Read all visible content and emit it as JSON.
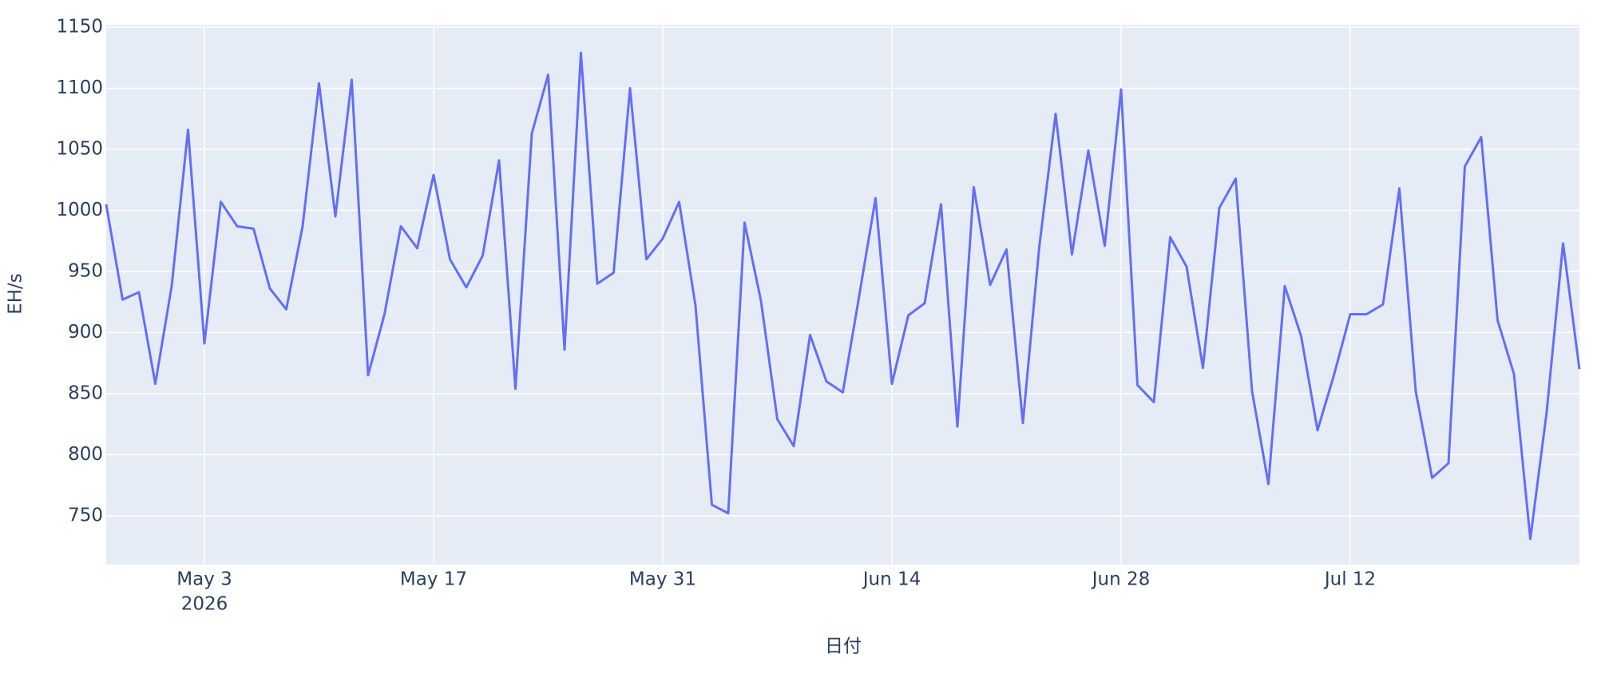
{
  "chart_data": {
    "type": "line",
    "x_label": "日付",
    "y_label": "EH/s",
    "x": [
      "2026-04-27",
      "2026-04-28",
      "2026-04-29",
      "2026-04-30",
      "2026-05-01",
      "2026-05-02",
      "2026-05-03",
      "2026-05-04",
      "2026-05-05",
      "2026-05-06",
      "2026-05-07",
      "2026-05-08",
      "2026-05-09",
      "2026-05-10",
      "2026-05-11",
      "2026-05-12",
      "2026-05-13",
      "2026-05-14",
      "2026-05-15",
      "2026-05-16",
      "2026-05-17",
      "2026-05-18",
      "2026-05-19",
      "2026-05-20",
      "2026-05-21",
      "2026-05-22",
      "2026-05-23",
      "2026-05-24",
      "2026-05-25",
      "2026-05-26",
      "2026-05-27",
      "2026-05-28",
      "2026-05-29",
      "2026-05-30",
      "2026-05-31",
      "2026-06-01",
      "2026-06-02",
      "2026-06-03",
      "2026-06-04",
      "2026-06-05",
      "2026-06-06",
      "2026-06-07",
      "2026-06-08",
      "2026-06-09",
      "2026-06-10",
      "2026-06-11",
      "2026-06-12",
      "2026-06-13",
      "2026-06-14",
      "2026-06-15",
      "2026-06-16",
      "2026-06-17",
      "2026-06-18",
      "2026-06-19",
      "2026-06-20",
      "2026-06-21",
      "2026-06-22",
      "2026-06-23",
      "2026-06-24",
      "2026-06-25",
      "2026-06-26",
      "2026-06-27",
      "2026-06-28",
      "2026-06-29",
      "2026-06-30",
      "2026-07-01",
      "2026-07-02",
      "2026-07-03",
      "2026-07-04",
      "2026-07-05",
      "2026-07-06",
      "2026-07-07",
      "2026-07-08",
      "2026-07-09",
      "2026-07-10",
      "2026-07-11",
      "2026-07-12",
      "2026-07-13",
      "2026-07-14",
      "2026-07-15",
      "2026-07-16",
      "2026-07-17",
      "2026-07-18",
      "2026-07-19",
      "2026-07-20",
      "2026-07-21",
      "2026-07-22",
      "2026-07-23",
      "2026-07-24",
      "2026-07-25",
      "2026-07-26"
    ],
    "series": [
      {
        "name": "EH/s",
        "color": "#636efa",
        "values": [
          1005,
          927,
          933,
          858,
          938,
          1066,
          891,
          1007,
          987,
          985,
          936,
          919,
          987,
          1104,
          995,
          1107,
          865,
          915,
          987,
          969,
          1029,
          960,
          937,
          963,
          1041,
          854,
          1063,
          1111,
          886,
          1129,
          940,
          949,
          1100,
          960,
          977,
          1007,
          922,
          759,
          752,
          990,
          926,
          829,
          807,
          898,
          860,
          851,
          930,
          1010,
          858,
          914,
          924,
          1005,
          823,
          1019,
          939,
          968,
          826,
          970,
          1079,
          964,
          1049,
          971,
          1099,
          857,
          843,
          978,
          954,
          871,
          1002,
          1026,
          852,
          776,
          938,
          897,
          820,
          865,
          915,
          915,
          923,
          1018,
          852,
          781,
          793,
          1036,
          1060,
          910,
          866,
          731,
          835,
          973,
          870
        ]
      }
    ],
    "xlim": [
      "2026-04-27",
      "2026-07-26"
    ],
    "xticks": [
      {
        "value": "2026-05-03",
        "label": [
          "May 3",
          "2026"
        ]
      },
      {
        "value": "2026-05-17",
        "label": [
          "May 17"
        ]
      },
      {
        "value": "2026-05-31",
        "label": [
          "May 31"
        ]
      },
      {
        "value": "2026-06-14",
        "label": [
          "Jun 14"
        ]
      },
      {
        "value": "2026-06-28",
        "label": [
          "Jun 28"
        ]
      },
      {
        "value": "2026-07-12",
        "label": [
          "Jul 12"
        ]
      }
    ],
    "ylim": [
      710,
      1152
    ],
    "yticks": [
      750,
      800,
      850,
      900,
      950,
      1000,
      1050,
      1100,
      1150
    ],
    "grid": true,
    "plot_background": "#e5ecf6"
  }
}
